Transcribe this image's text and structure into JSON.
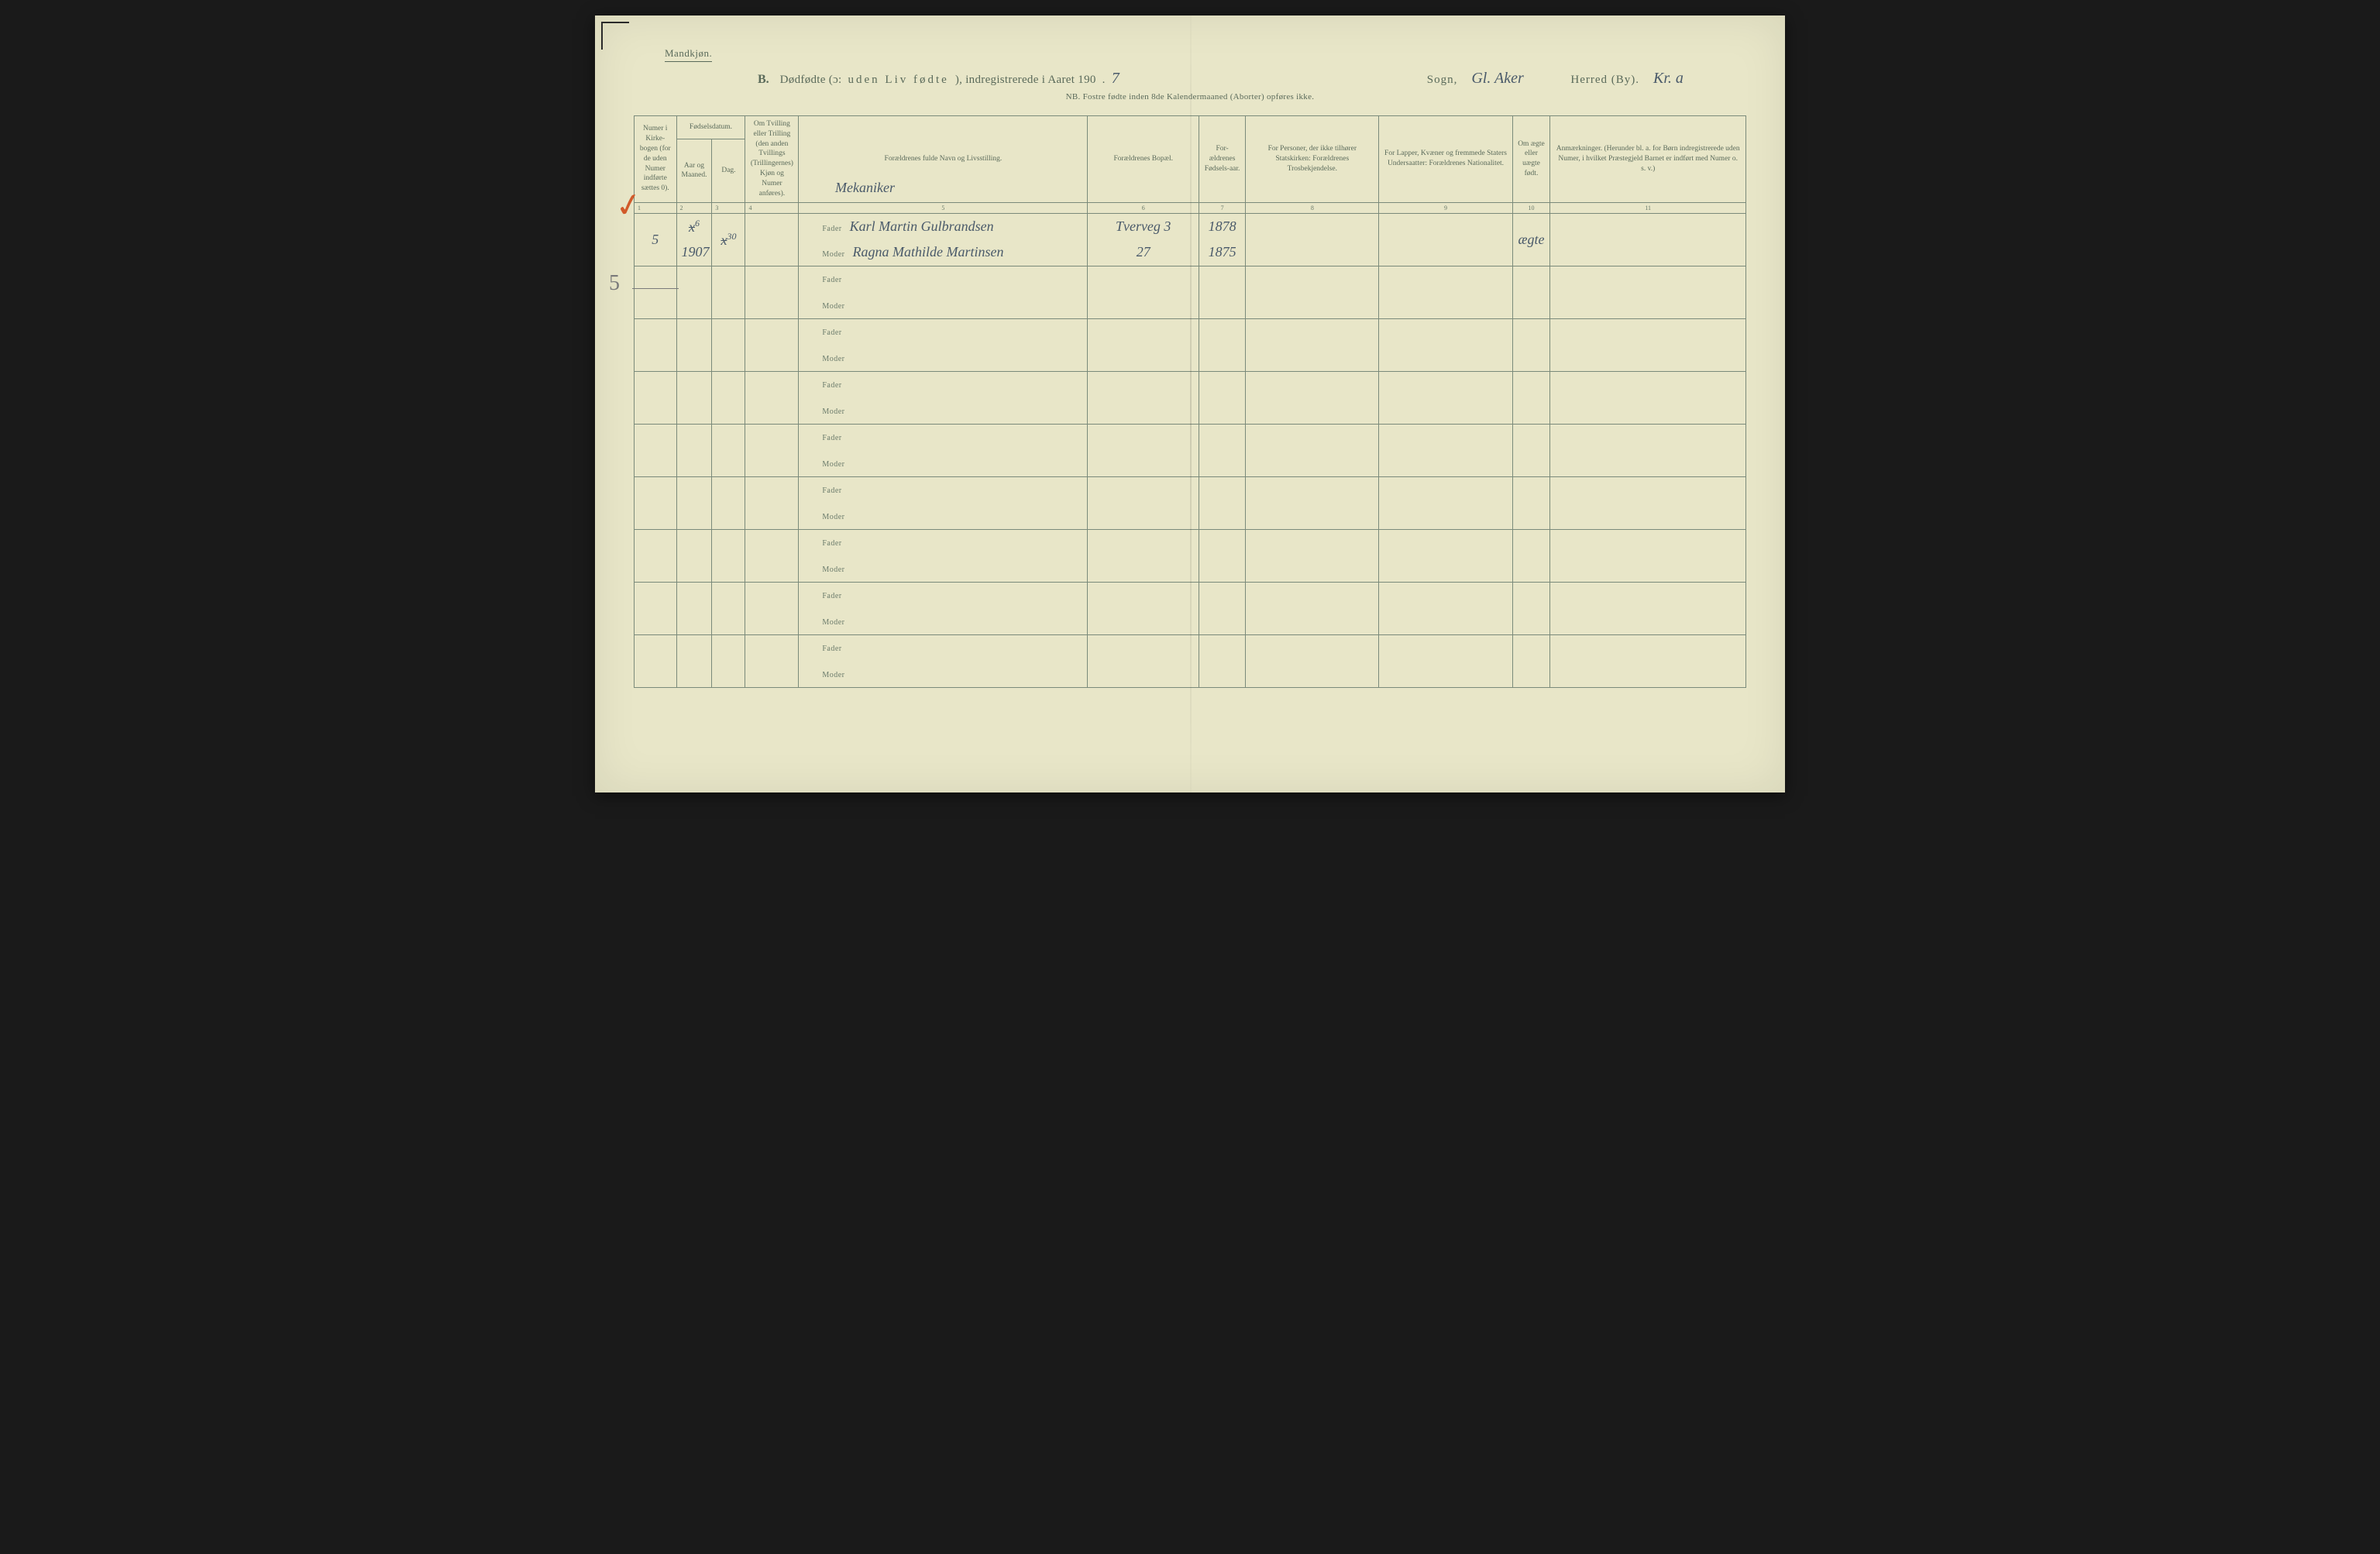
{
  "header": {
    "gender": "Mandkjøn.",
    "title_b": "B.",
    "title_main_1": "Dødfødte (ɔ:",
    "title_spaced": "uden Liv fødte",
    "title_main_2": "), indregistrerede i Aaret 190",
    "year_suffix": "7",
    "sogn_label": "Sogn,",
    "sogn_value": "Gl. Aker",
    "herred_label": "Herred (By).",
    "herred_value": "Kr. a",
    "subtitle": "NB. Fostre fødte inden 8de Kalendermaaned (Aborter) opføres ikke."
  },
  "columns": {
    "c1": "Numer i Kirke-bogen (for de uden Numer indførte sættes 0).",
    "c2": "Fødselsdatum.",
    "c2a": "Aar og Maaned.",
    "c2b": "Dag.",
    "c3": "Om Tvilling eller Trilling (den anden Tvillings (Trillingernes) Kjøn og Numer anføres).",
    "c4": "Forældrenes fulde Navn og Livsstilling.",
    "c5": "Forældrenes Bopæl.",
    "c6": "For-ældrenes Fødsels-aar.",
    "c7": "For Personer, der ikke tilhører Statskirken: Forældrenes Trosbekjendelse.",
    "c8": "For Lapper, Kvæner og fremmede Staters Undersaatter: Forældrenes Nationalitet.",
    "c9": "Om ægte eller uægte født.",
    "c10": "Anmærkninger. (Herunder bl. a. for Børn indregistrerede uden Numer, i hvilket Præstegjeld Barnet er indført med Numer o. s. v.)",
    "nums": [
      "1",
      "2",
      "3",
      "4",
      "5",
      "6",
      "7",
      "8",
      "9",
      "10",
      "11"
    ]
  },
  "row_labels": {
    "fader": "Fader",
    "moder": "Moder"
  },
  "entry": {
    "num": "5",
    "aar_top_strike": "x",
    "aar_top_sup": "6",
    "aar_bottom": "1907",
    "dag_strike": "x",
    "dag_sup": "30",
    "occupation": "Mekaniker",
    "fader_name": "Karl Martin Gulbrandsen",
    "moder_name": "Ragna Mathilde Martinsen",
    "fader_bopael": "Tverveg 3",
    "moder_bopael": "27",
    "fader_year": "1878",
    "moder_year": "1875",
    "aegte": "ægte"
  },
  "marks": {
    "check": "✓",
    "pencil5": "5"
  },
  "colors": {
    "paper": "#e8e6c8",
    "ink_print": "#5a6a5a",
    "ink_hand": "#4a5a6a",
    "border": "#7a8a7a",
    "red": "#d15a2a"
  }
}
